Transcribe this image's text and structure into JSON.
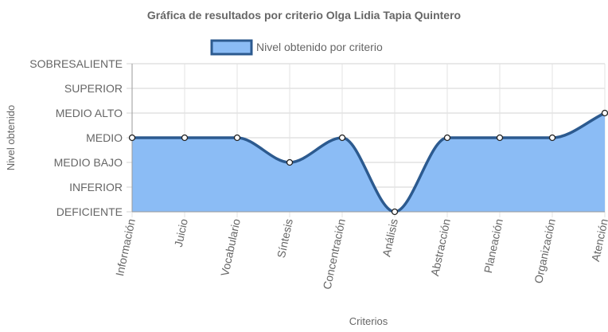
{
  "chart_data": {
    "type": "area",
    "title": "Gráfica de resultados por criterio Olga Lidia Tapia Quintero",
    "xlabel": "Criterios",
    "ylabel": "Nivel obtenido",
    "categories": [
      "Información",
      "Juicio",
      "Vocabulario",
      "Síntesis",
      "Concentración",
      "Análisis",
      "Abstracción",
      "Planeación",
      "Organización",
      "Atención"
    ],
    "y_levels": [
      "DEFICIENTE",
      "INFERIOR",
      "MEDIO BAJO",
      "MEDIO",
      "MEDIO ALTO",
      "SUPERIOR",
      "SOBRESALIENTE"
    ],
    "ylim": [
      0,
      6
    ],
    "grid": true,
    "legend_position": "top",
    "series": [
      {
        "name": "Nivel obtenido por criterio",
        "values": [
          3,
          3,
          3,
          2,
          3,
          0,
          3,
          3,
          3,
          4
        ],
        "line_color": "#2c5a8f",
        "fill_color": "#8bbcf5"
      }
    ]
  }
}
